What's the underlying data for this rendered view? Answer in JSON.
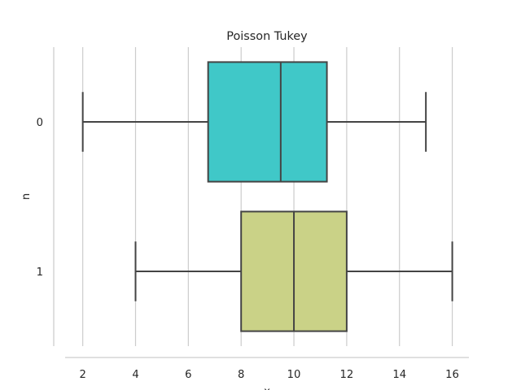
{
  "chart_data": {
    "type": "box",
    "orientation": "horizontal",
    "title": "Poisson Tukey",
    "xlabel": "x",
    "ylabel": "n",
    "xlim": [
      0.9,
      17.0
    ],
    "x_ticks": [
      2,
      4,
      6,
      8,
      10,
      12,
      14,
      16
    ],
    "grid": "vertical",
    "categories": [
      "0",
      "1"
    ],
    "series": [
      {
        "category": "0",
        "whisker_low": 2,
        "q1": 6.75,
        "median": 9.5,
        "q3": 11.25,
        "whisker_high": 15,
        "color": "#40c8c8"
      },
      {
        "category": "1",
        "whisker_low": 4,
        "q1": 8,
        "median": 10,
        "q3": 12,
        "whisker_high": 16,
        "color": "#cad287"
      }
    ]
  }
}
